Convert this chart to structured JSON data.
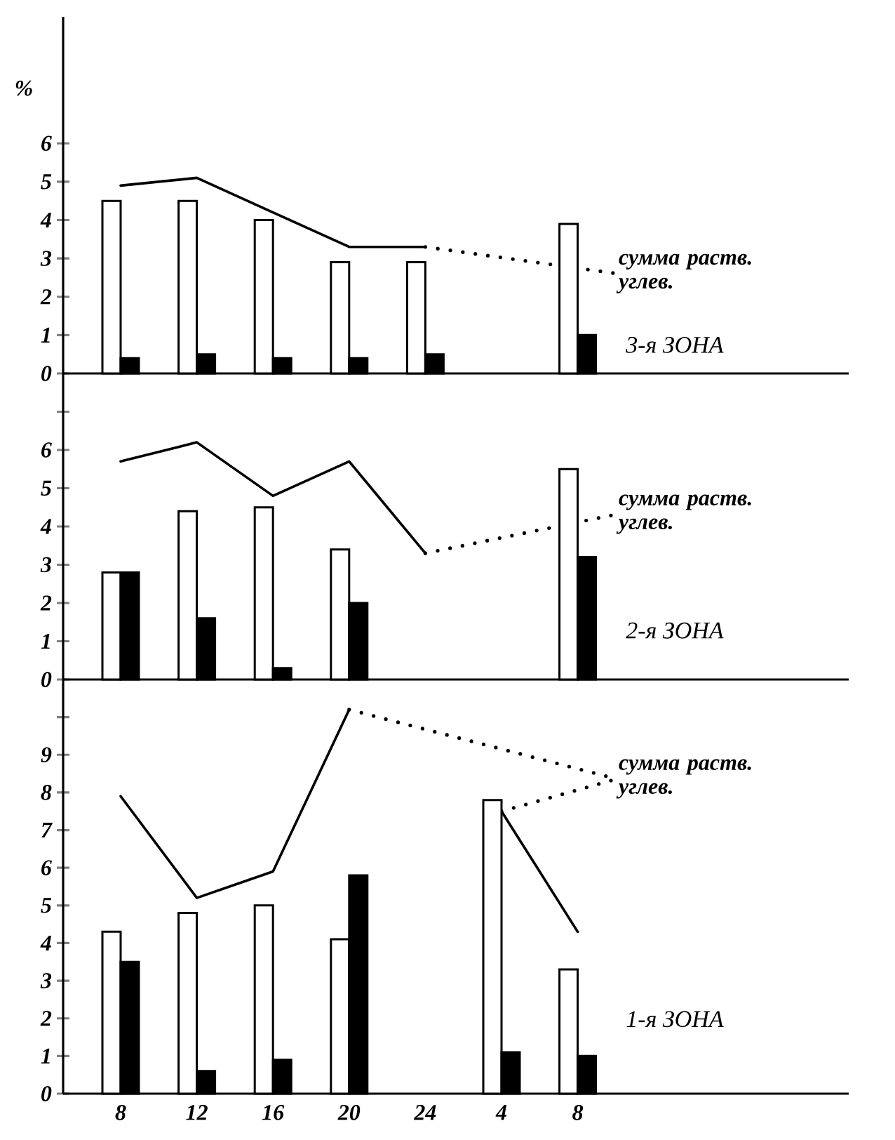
{
  "chart_data": [
    {
      "type": "bar",
      "ylabel": "%",
      "categories": [
        "8",
        "12",
        "16",
        "20",
        "24",
        "4",
        "8"
      ],
      "ylim": [
        0,
        9.3
      ],
      "yticks": [
        0,
        1,
        2,
        3,
        4,
        5,
        6
      ],
      "tick_labels": "y",
      "annotations": [
        "3-я ЗОНА"
      ],
      "series": [
        {
          "color": "#ffffff",
          "values": [
            4.5,
            4.5,
            4.0,
            2.9,
            2.9,
            null,
            3.9
          ]
        },
        {
          "color": "#000000",
          "values": [
            0.4,
            0.5,
            0.4,
            0.4,
            0.5,
            null,
            1.0
          ]
        },
        {
          "type": "line",
          "name": "сумма раств. углев.",
          "color": "#000000",
          "values": [
            4.9,
            5.1,
            4.2,
            3.3,
            3.3,
            null,
            null
          ]
        }
      ]
    },
    {
      "type": "bar",
      "categories": [
        "8",
        "12",
        "16",
        "20",
        "24",
        "4",
        "8"
      ],
      "ylim": [
        0,
        8
      ],
      "yticks": [
        0,
        1,
        2,
        3,
        4,
        5,
        6,
        {
          "value": 7,
          "label": null
        }
      ],
      "tick_labels": "y",
      "annotations": [
        "2-я ЗОНА"
      ],
      "series": [
        {
          "color": "#ffffff",
          "values": [
            2.8,
            4.4,
            4.5,
            3.4,
            null,
            null,
            5.5
          ]
        },
        {
          "color": "#000000",
          "values": [
            2.8,
            1.6,
            0.3,
            2.0,
            null,
            null,
            3.2
          ]
        },
        {
          "type": "line",
          "name": "сумма раств. углев.",
          "color": "#000000",
          "values": [
            5.7,
            6.2,
            4.8,
            5.7,
            3.3,
            null,
            null
          ]
        }
      ]
    },
    {
      "type": "bar",
      "categories": [
        "8",
        "12",
        "16",
        "20",
        "24",
        "4",
        "8"
      ],
      "ylim": [
        0,
        11
      ],
      "yticks": [
        0,
        1,
        2,
        3,
        4,
        5,
        6,
        7,
        8,
        9,
        {
          "value": 10,
          "label": null
        }
      ],
      "annotations": [
        "1-я ЗОНА"
      ],
      "series": [
        {
          "color": "#ffffff",
          "values": [
            4.3,
            4.8,
            5.0,
            4.1,
            null,
            7.8,
            3.3
          ]
        },
        {
          "color": "#000000",
          "values": [
            3.5,
            0.6,
            0.9,
            5.8,
            null,
            1.1,
            1.0
          ]
        },
        {
          "type": "line",
          "name": "сумма раств. углев.",
          "color": "#000000",
          "values": [
            7.9,
            5.2,
            5.9,
            10.2,
            null,
            7.5,
            4.3
          ]
        }
      ]
    }
  ]
}
